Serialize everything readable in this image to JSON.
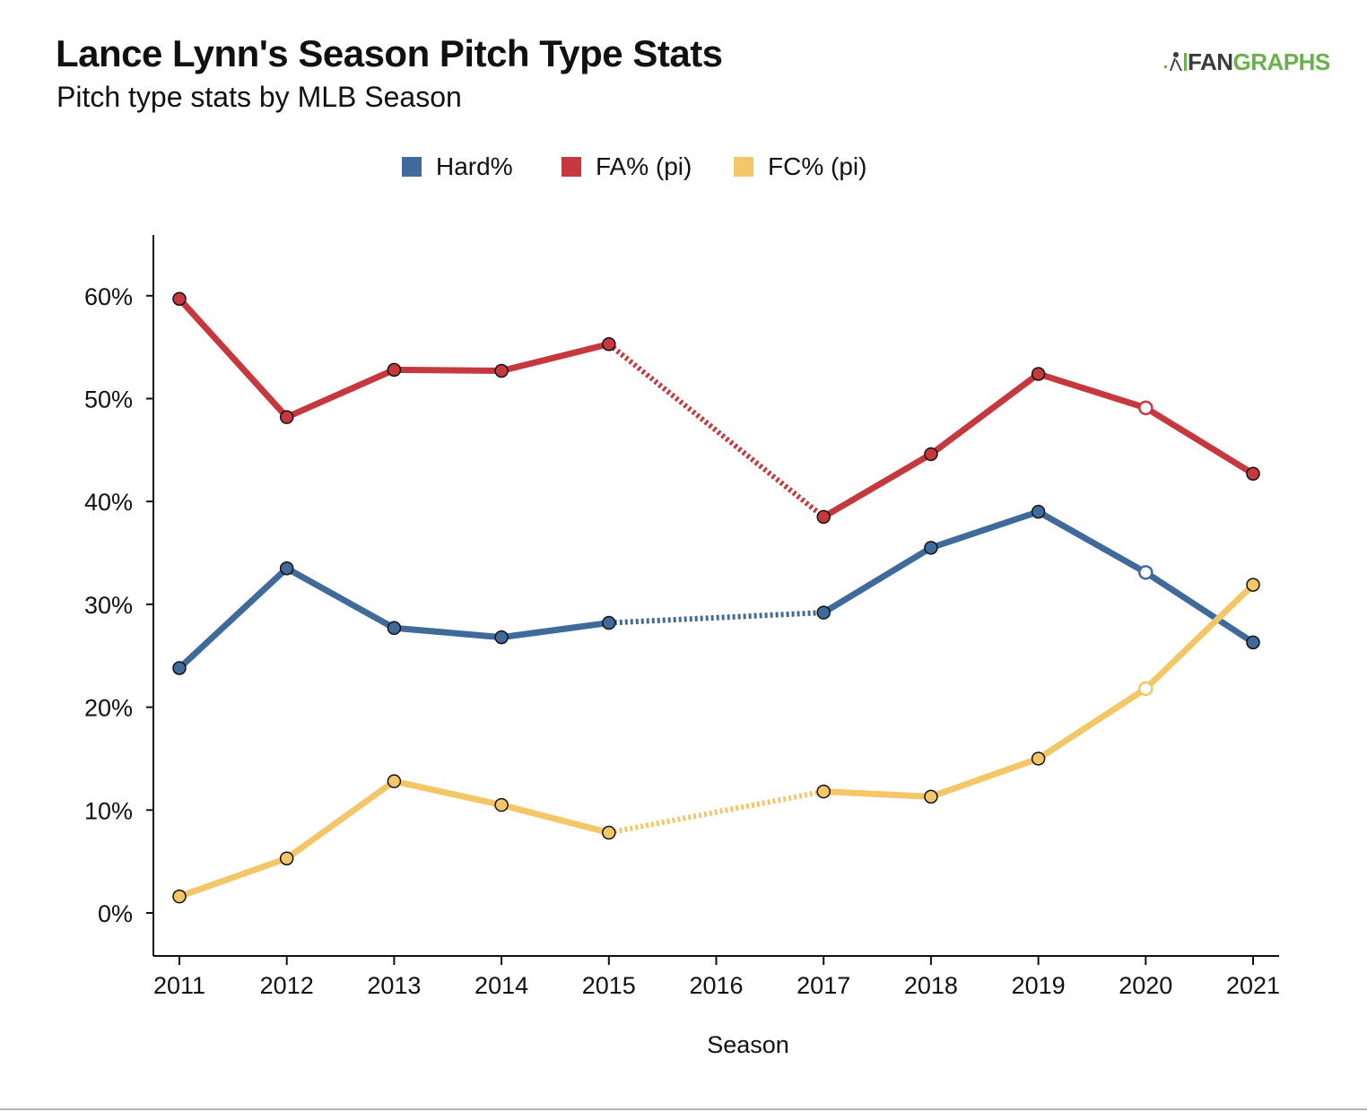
{
  "header": {
    "title": "Lance Lynn's Season Pitch Type Stats",
    "subtitle": "Pitch type stats by MLB Season",
    "logo_part1": "FAN",
    "logo_part2": "GRAPHS"
  },
  "colors": {
    "hard": "#3f6a9a",
    "fa": "#c5383d",
    "fc": "#f3c668",
    "axis": "#111111",
    "logo_green": "#6ab04c"
  },
  "chart_data": {
    "type": "line",
    "xlabel": "Season",
    "ylabel": "",
    "x": [
      2011,
      2012,
      2013,
      2014,
      2015,
      2016,
      2017,
      2018,
      2019,
      2020,
      2021
    ],
    "ylim": [
      -4,
      66
    ],
    "yticks": [
      0,
      10,
      20,
      30,
      40,
      50,
      60
    ],
    "ytick_labels": [
      "0%",
      "10%",
      "20%",
      "30%",
      "40%",
      "50%",
      "60%"
    ],
    "legend_position": "top-center",
    "grid": false,
    "missing_seasons_dotted": [
      2016
    ],
    "hollow_marker_seasons": [
      2020
    ],
    "series": [
      {
        "name": "Hard%",
        "color": "#3f6a9a",
        "values": [
          23.8,
          33.5,
          27.7,
          26.8,
          28.2,
          null,
          29.2,
          35.5,
          39.0,
          33.1,
          26.3
        ]
      },
      {
        "name": "FA% (pi)",
        "color": "#c5383d",
        "values": [
          59.7,
          48.2,
          52.8,
          52.7,
          55.3,
          null,
          38.5,
          44.6,
          52.4,
          49.1,
          42.7
        ]
      },
      {
        "name": "FC% (pi)",
        "color": "#f3c668",
        "values": [
          1.6,
          5.3,
          12.8,
          10.5,
          7.8,
          null,
          11.8,
          11.3,
          15.0,
          21.8,
          31.9
        ]
      }
    ]
  }
}
